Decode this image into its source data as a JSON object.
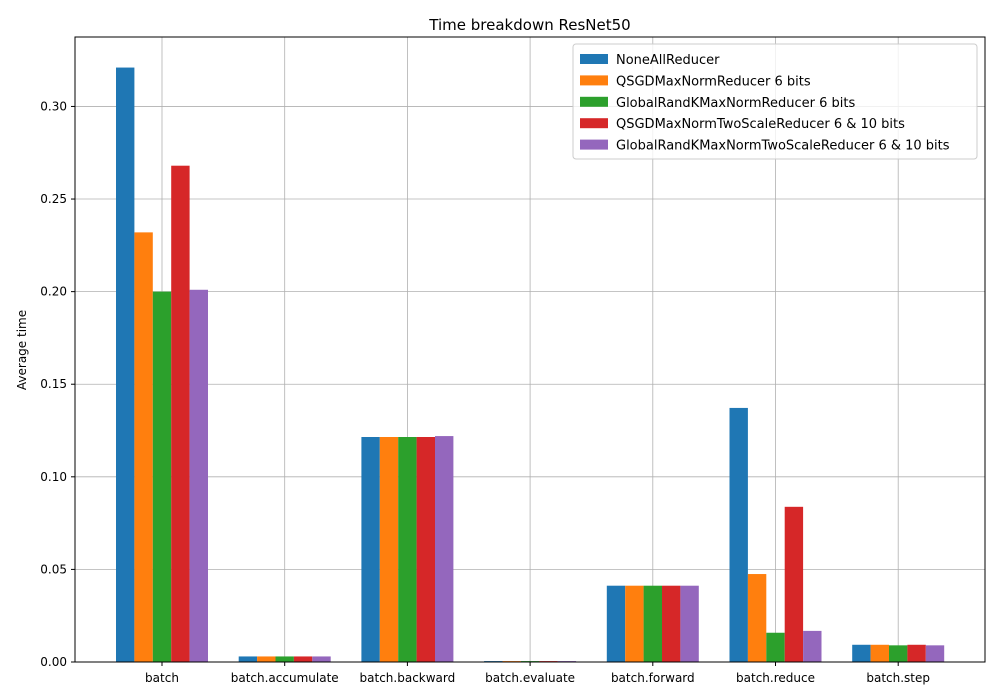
{
  "chart_data": {
    "type": "bar",
    "title": "Time breakdown ResNet50",
    "xlabel": "",
    "ylabel": "Average time",
    "ylim": [
      0,
      0.3375
    ],
    "yticks": [
      "0.00",
      "0.05",
      "0.10",
      "0.15",
      "0.20",
      "0.25",
      "0.30"
    ],
    "grid": true,
    "legend_position": "top-right",
    "categories": [
      "batch",
      "batch.accumulate",
      "batch.backward",
      "batch.evaluate",
      "batch.forward",
      "batch.reduce",
      "batch.step"
    ],
    "series": [
      {
        "name": "NoneAllReducer",
        "color": "#1f77b4",
        "values": [
          0.321,
          0.003,
          0.1215,
          0.0005,
          0.0412,
          0.1372,
          0.0093
        ]
      },
      {
        "name": "QSGDMaxNormReducer 6 bits",
        "color": "#ff7f0e",
        "values": [
          0.232,
          0.003,
          0.1215,
          0.0005,
          0.0412,
          0.0475,
          0.0093
        ]
      },
      {
        "name": "GlobalRandKMaxNormReducer 6 bits",
        "color": "#2ca02c",
        "values": [
          0.2,
          0.003,
          0.1215,
          0.0005,
          0.0412,
          0.0158,
          0.009
        ]
      },
      {
        "name": "QSGDMaxNormTwoScaleReducer 6 & 10 bits",
        "color": "#d62728",
        "values": [
          0.268,
          0.003,
          0.1215,
          0.0005,
          0.0412,
          0.0838,
          0.0093
        ]
      },
      {
        "name": "GlobalRandKMaxNormTwoScaleReducer 6 & 10 bits",
        "color": "#9467bd",
        "values": [
          0.201,
          0.003,
          0.122,
          0.0005,
          0.0412,
          0.0168,
          0.009
        ]
      }
    ]
  }
}
